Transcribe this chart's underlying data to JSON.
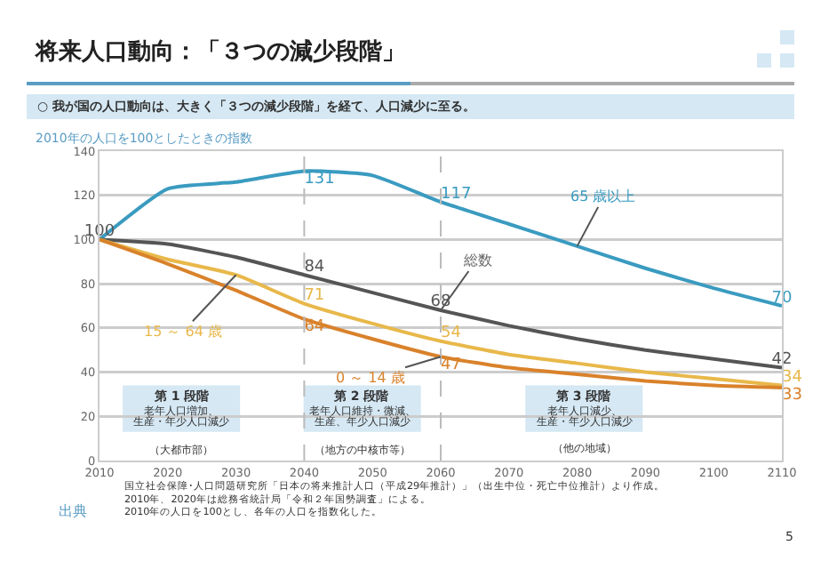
{
  "chart_data": {
    "type": "line",
    "title": "将来人口動向：「３つの減少段階」",
    "subtitle": "○ 我が国の人口動向は、大きく「３つの減少段階」を経て、人口減少に至る。",
    "ylabel": "2010年の人口を100としたときの指数",
    "x": [
      2010,
      2020,
      2030,
      2040,
      2050,
      2060,
      2070,
      2080,
      2090,
      2100,
      2110
    ],
    "series": [
      {
        "name": "65 歳以上",
        "color": "#3a9bc0",
        "values": [
          100,
          123,
          126,
          131,
          129,
          117,
          107,
          97,
          87,
          78,
          70
        ],
        "value_labels": [
          null,
          null,
          null,
          "131",
          null,
          "117",
          null,
          null,
          null,
          null,
          "70"
        ]
      },
      {
        "name": "総数",
        "color": "#555555",
        "values": [
          100,
          98,
          92,
          84,
          76,
          68,
          61,
          55,
          50,
          46,
          42
        ],
        "value_labels": [
          "100",
          null,
          null,
          "84",
          null,
          "68",
          null,
          null,
          null,
          null,
          "42"
        ]
      },
      {
        "name": "15 ～ 64 歳",
        "color": "#e8b84a",
        "values": [
          100,
          91,
          84,
          71,
          62,
          54,
          48,
          44,
          40,
          37,
          34
        ],
        "value_labels": [
          null,
          null,
          null,
          "71",
          null,
          "54",
          null,
          null,
          null,
          null,
          "34"
        ]
      },
      {
        "name": "0 ～ 14 歳",
        "color": "#d9822b",
        "values": [
          100,
          89,
          77,
          64,
          55,
          47,
          42,
          39,
          36,
          34,
          33
        ],
        "value_labels": [
          null,
          null,
          null,
          "64",
          null,
          "47",
          null,
          null,
          null,
          null,
          "33"
        ]
      }
    ],
    "xlim": [
      2010,
      2110
    ],
    "xticks": [
      2010,
      2020,
      2030,
      2040,
      2050,
      2060,
      2070,
      2080,
      2090,
      2100,
      2110
    ],
    "ylim": [
      0,
      140
    ],
    "yticks": [
      0,
      20,
      40,
      60,
      80,
      100,
      120,
      140
    ],
    "ref_lines": [
      {
        "axis": "x",
        "value": 2040,
        "color": "#bbbbbb",
        "line_style": "dashed"
      },
      {
        "axis": "x",
        "value": 2060,
        "color": "#bbbbbb",
        "line_style": "dashed"
      }
    ],
    "annotations": [
      "第 1 段階",
      "老年人口増加、",
      "生産・年少人口減少",
      "（大都市部）",
      "第 2 段階",
      "老年人口維持・微減、",
      "生産、年少人口減少",
      "（地方の中核市等）",
      "第 3 段階",
      "老年人口減少、",
      "生産・年少人口減少",
      "（他の地域）",
      "出典",
      "国立社会保障･人口問題研究所「日本の将来推計人口（平成29年推計）」（出生中位・死亡中位推計）より作成。\n2010年、2020年は総務省統計局「令和２年国勢調査」による。\n2010年の人口を100とし、各年の人口を指数化した。",
      "5"
    ],
    "grid": "y",
    "legend": false,
    "marker": "none",
    "line_style": "solid"
  }
}
